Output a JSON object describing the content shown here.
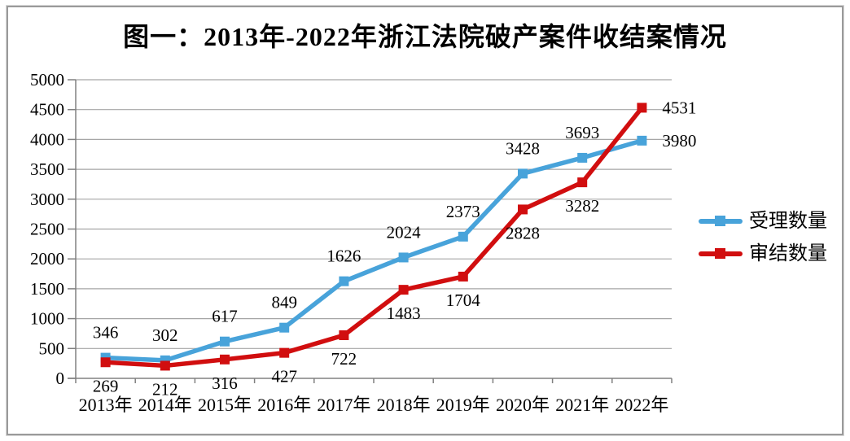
{
  "chart_data": {
    "type": "line",
    "title": "图一：2013年-2022年浙江法院破产案件收结案情况",
    "categories": [
      "2013年",
      "2014年",
      "2015年",
      "2016年",
      "2017年",
      "2018年",
      "2019年",
      "2020年",
      "2021年",
      "2022年"
    ],
    "series": [
      {
        "name": "受理数量",
        "color": "#48a3da",
        "marker": "square",
        "label_position": "above",
        "values": [
          346,
          302,
          617,
          849,
          1626,
          2024,
          2373,
          3428,
          3693,
          3980
        ]
      },
      {
        "name": "审结数量",
        "color": "#d10e0f",
        "marker": "square",
        "label_position": "below",
        "values": [
          269,
          212,
          316,
          427,
          722,
          1483,
          1704,
          2828,
          3282,
          4531
        ]
      }
    ],
    "xlabel": "",
    "ylabel": "",
    "ylim": [
      0,
      5000
    ],
    "ytick_step": 500,
    "grid": true,
    "data_labels": true,
    "legend_position": "right",
    "last_point_label_position": "right",
    "colors": {
      "axis": "#808080",
      "grid": "#a6a6a6",
      "text": "#000000"
    }
  }
}
